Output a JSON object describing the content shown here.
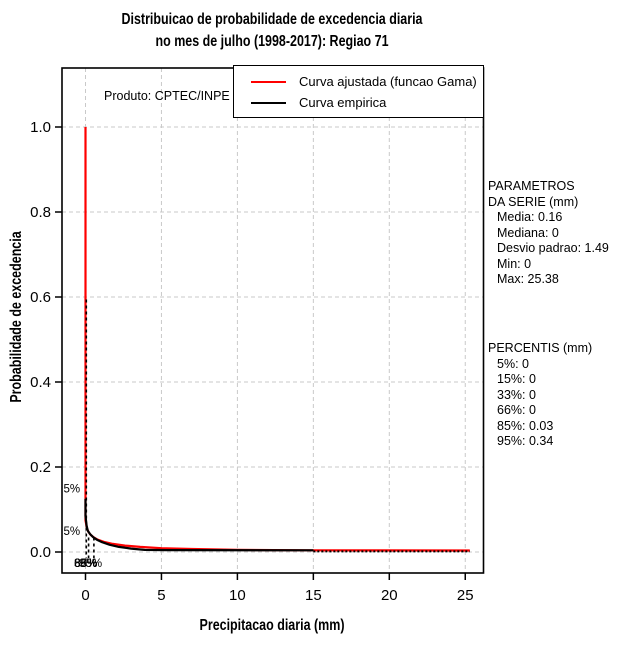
{
  "title": {
    "line1": "Distribuicao de probabilidade de excedencia diaria",
    "line2": "no mes de julho (1998-2017): Regiao 71"
  },
  "plot_note": "Produto: CPTEC/INPE",
  "legend": {
    "items": [
      {
        "label": "Curva ajustada (funcao Gama)",
        "color": "#ff0000"
      },
      {
        "label": "Curva empirica",
        "color": "#000000"
      }
    ]
  },
  "side_panel": {
    "parametros": {
      "heading1": "PARAMETROS",
      "heading2": "DA SERIE (mm)",
      "items": [
        "Media: 0.16",
        "Mediana: 0",
        "Desvio padrao: 1.49",
        "Min: 0",
        "Max: 25.38"
      ]
    },
    "percentis": {
      "heading": "PERCENTIS (mm)",
      "items": [
        "5%: 0",
        "15%: 0",
        "33%: 0",
        "66%: 0",
        "85%: 0.03",
        "95%: 0.34"
      ]
    }
  },
  "chart_data": {
    "type": "line",
    "title": "Distribuicao de probabilidade de excedencia diaria no mes de julho (1998-2017): Regiao 71",
    "xlabel": "Precipitacao diaria (mm)",
    "ylabel": "Probabilidade de excedencia",
    "xlim": [
      -1.5,
      26.2
    ],
    "ylim": [
      -0.05,
      1.05
    ],
    "x_ticks": [
      "0",
      "5",
      "10",
      "15",
      "20",
      "25"
    ],
    "y_ticks": [
      "0.0",
      "0.2",
      "0.4",
      "0.6",
      "0.8",
      "1.0"
    ],
    "grid": {
      "style": "dashed",
      "color": "#c9c9c9",
      "at_every_tick": true
    },
    "legend_position": "topright",
    "series": [
      {
        "name": "Curva ajustada (funcao Gama)",
        "color": "#ff0000",
        "style": "solid",
        "points": [
          [
            0,
            1.0
          ],
          [
            0,
            0.074
          ],
          [
            0.1,
            0.055
          ],
          [
            0.2,
            0.047
          ],
          [
            0.35,
            0.04
          ],
          [
            0.55,
            0.034
          ],
          [
            0.8,
            0.029
          ],
          [
            1.2,
            0.024
          ],
          [
            1.8,
            0.019
          ],
          [
            2.6,
            0.015
          ],
          [
            3.6,
            0.012
          ],
          [
            5,
            0.009
          ],
          [
            7,
            0.007
          ],
          [
            10,
            0.005
          ],
          [
            15,
            0.004
          ],
          [
            25.3,
            0.0035
          ]
        ]
      },
      {
        "name": "Curva empirica",
        "color": "#000000",
        "style": "solid",
        "points": [
          [
            0,
            0.125
          ],
          [
            0,
            0.085
          ],
          [
            0.07,
            0.062
          ],
          [
            0.15,
            0.05
          ],
          [
            0.3,
            0.042
          ],
          [
            0.5,
            0.035
          ],
          [
            0.75,
            0.029
          ],
          [
            1.1,
            0.023
          ],
          [
            1.6,
            0.017
          ],
          [
            2.2,
            0.012
          ],
          [
            3,
            0.008
          ],
          [
            3.9,
            0.005
          ],
          [
            5.3,
            0.0045
          ],
          [
            15,
            0.004
          ]
        ],
        "dashed_tail": [
          [
            15,
            0.0015
          ],
          [
            25.3,
            0.0015
          ]
        ]
      }
    ],
    "annotations": {
      "marker_vlines": [
        {
          "x": 0,
          "p_top": 0.594
        },
        {
          "x": 0.15,
          "p_top": 0.034
        },
        {
          "x": 0.5,
          "p_top": 0.034
        }
      ],
      "y_percent_labels": [
        {
          "text": "5%",
          "p": 0.15
        },
        {
          "text": "5%",
          "p": 0.05
        }
      ],
      "x_percent_labels": [
        {
          "text": "33%",
          "x": 0
        },
        {
          "text": "66%",
          "x": 0
        },
        {
          "text": "85%",
          "x": 0.03
        },
        {
          "text": "95%",
          "x": 0.34
        }
      ]
    }
  }
}
